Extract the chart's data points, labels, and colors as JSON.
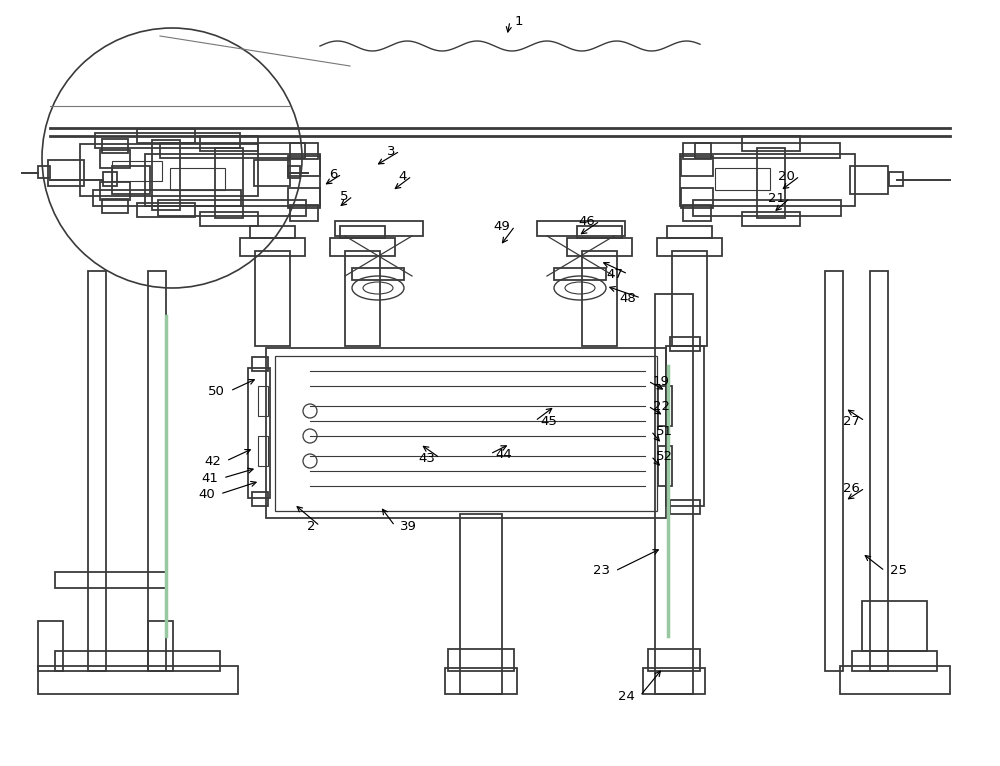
{
  "bg_color": "#ffffff",
  "lc": "#3a3a3a",
  "lw": 1.3,
  "fig_w": 10.0,
  "fig_h": 7.66,
  "dpi": 100
}
